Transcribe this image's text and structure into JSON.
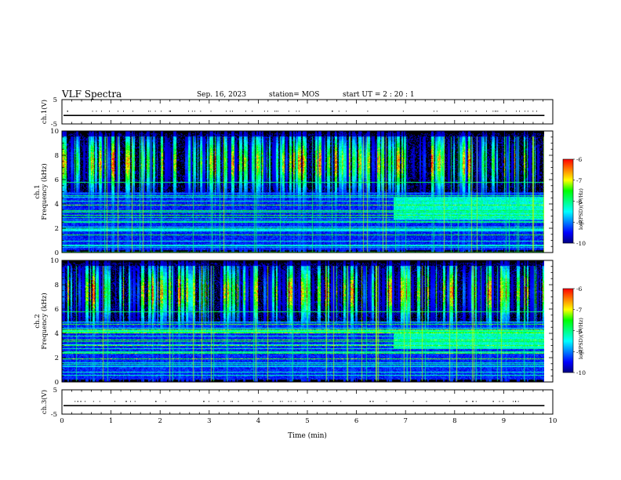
{
  "header": {
    "title": "VLF Spectra",
    "date": "Sep. 16, 2023",
    "station": "station= MOS",
    "start": "start  UT  =   2 : 20 : 1"
  },
  "chart_data": {
    "type": "heatmap",
    "x_axis": {
      "label": "Time  (min)",
      "range": [
        0,
        10
      ],
      "ticks": [
        "0",
        "1",
        "2",
        "3",
        "4",
        "5",
        "6",
        "7",
        "8",
        "9",
        "10"
      ],
      "data_end": 9.83
    },
    "panels": [
      {
        "id": "ch1-waveform",
        "type": "line",
        "ylabel": "ch.1(V)",
        "ylim": [
          -5,
          5
        ],
        "yticks": [
          "5",
          "-5"
        ],
        "level": -1.5
      },
      {
        "id": "ch1-spectrogram",
        "type": "heatmap",
        "ylabel_top": "ch.1",
        "ylabel": "Frequency  (kHz)",
        "ylim": [
          0,
          10
        ],
        "yticks": [
          "0",
          "2",
          "4",
          "6",
          "8",
          "10"
        ],
        "colorbar": {
          "label": "log(PSD)(V²/Hz)",
          "range": [
            -10,
            -6
          ],
          "ticks": [
            "-6",
            "-7",
            "-8",
            "-9",
            "-10"
          ]
        }
      },
      {
        "id": "ch2-spectrogram",
        "type": "heatmap",
        "ylabel_top": "ch.2",
        "ylabel": "Frequency  (kHz)",
        "ylim": [
          0,
          10
        ],
        "yticks": [
          "0",
          "2",
          "4",
          "6",
          "8",
          "10"
        ],
        "colorbar": {
          "label": "log(PSD)(V²/Hz)",
          "range": [
            -10,
            -6
          ],
          "ticks": [
            "-6",
            "-7",
            "-8",
            "-9",
            "-10"
          ]
        }
      },
      {
        "id": "ch3-waveform",
        "type": "line",
        "ylabel": "ch.3(V)",
        "ylim": [
          -5,
          5
        ],
        "yticks": [
          "5",
          "-5"
        ],
        "level": -1.5
      }
    ],
    "grid": false
  },
  "colors": {
    "colormap": [
      "#000080",
      "#0000ff",
      "#0080ff",
      "#00ffff",
      "#00ff80",
      "#00ff00",
      "#ffff00",
      "#ff8000",
      "#ff0000",
      "#ffffff"
    ],
    "background": "#000000",
    "axes": "#000000"
  }
}
